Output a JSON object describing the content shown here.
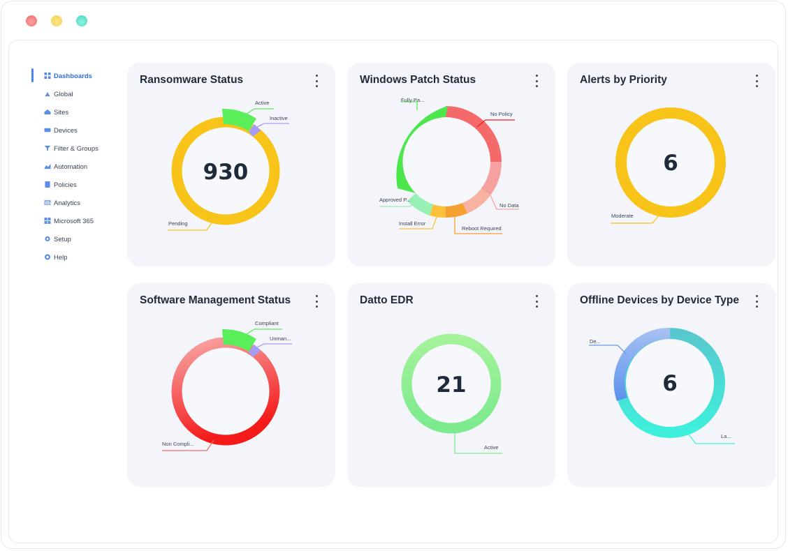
{
  "window": {
    "controls": [
      "close",
      "minimize",
      "maximize"
    ]
  },
  "sidebar": {
    "items": [
      {
        "label": "Dashboards",
        "icon": "grid-icon",
        "active": true
      },
      {
        "label": "Global",
        "icon": "globe-icon"
      },
      {
        "label": "Sites",
        "icon": "sites-icon"
      },
      {
        "label": "Devices",
        "icon": "devices-icon"
      },
      {
        "label": "Filter & Groups",
        "icon": "filter-icon"
      },
      {
        "label": "Automation",
        "icon": "automation-icon"
      },
      {
        "label": "Policies",
        "icon": "policies-icon"
      },
      {
        "label": "Analytics",
        "icon": "analytics-icon"
      },
      {
        "label": "Microsoft 365",
        "icon": "microsoft-icon"
      },
      {
        "label": "Setup",
        "icon": "gear-icon"
      },
      {
        "label": "Help",
        "icon": "help-icon"
      }
    ]
  },
  "cards": {
    "ransomware": {
      "title": "Ransomware Status",
      "total": "930",
      "labels": {
        "active": "Active",
        "inactive": "Inactive",
        "pending": "Pending"
      }
    },
    "patch": {
      "title": "Windows Patch Status",
      "labels": {
        "fully": "Fully Pa...",
        "no_policy": "No Policy",
        "no_data": "No Data",
        "reboot": "Reboot Required",
        "install_error": "Install Error",
        "approved": "Approved P..."
      }
    },
    "alerts": {
      "title": "Alerts by Priority",
      "total": "6",
      "labels": {
        "moderate": "Moderate"
      }
    },
    "software": {
      "title": "Software Management Status",
      "labels": {
        "compliant": "Compliant",
        "unmanaged": "Unman...",
        "non_compliant": "Non Compli..."
      }
    },
    "edr": {
      "title": "Datto EDR",
      "total": "21",
      "labels": {
        "active": "Active"
      }
    },
    "offline": {
      "title": "Offline Devices by Device Type",
      "total": "6",
      "labels": {
        "desktop": "De...",
        "laptop": "La..."
      }
    }
  },
  "colors": {
    "yellow": "#f9c41a",
    "green": "#5aee5a",
    "purple": "#a79cf5",
    "red": "#f41a1a",
    "pink": "#f6a0a0",
    "orange": "#f7a032",
    "mint": "#99f0b4",
    "blue": "#5b91ee",
    "teal": "#3ef0dc",
    "accent": "#2f6fe0"
  }
}
